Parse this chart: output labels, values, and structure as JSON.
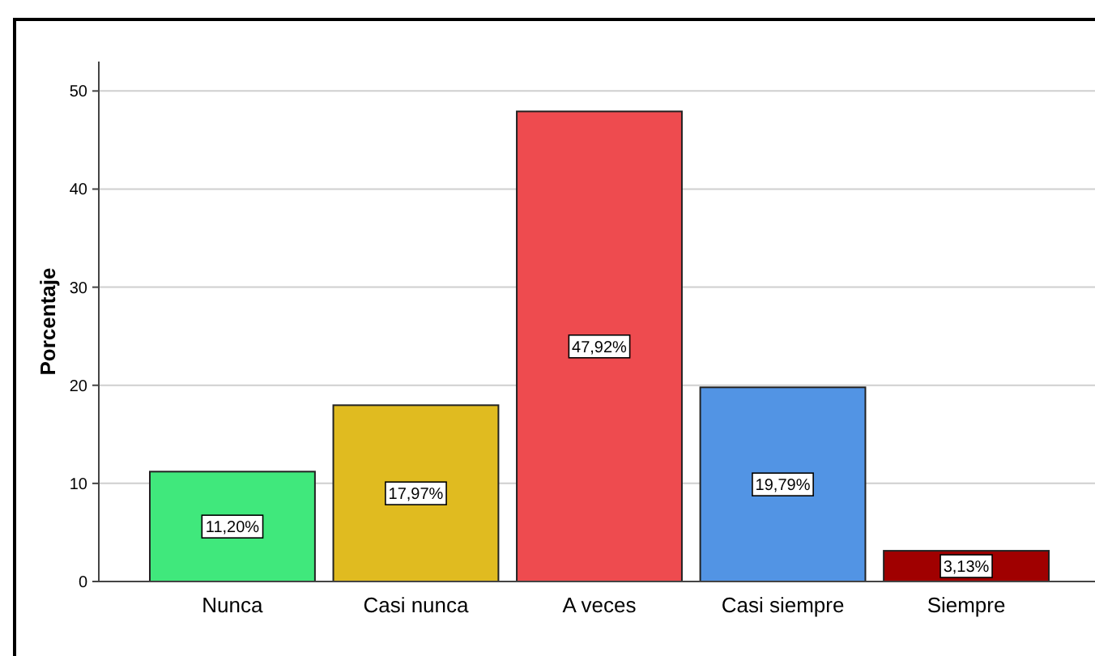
{
  "chart_data": {
    "type": "bar",
    "ylabel": "Porcentaje",
    "categories": [
      "Nunca",
      "Casi nunca",
      "A veces",
      "Casi siempre",
      "Siempre"
    ],
    "values": [
      11.2,
      17.97,
      47.92,
      19.79,
      3.13
    ],
    "colors": [
      "#40e87c",
      "#e0bb20",
      "#ee4b4f",
      "#5294e4",
      "#a00000"
    ],
    "value_labels": [
      "11,20%",
      "17,97%",
      "47,92%",
      "19,79%",
      "3,13%"
    ],
    "ylim": [
      0,
      53
    ],
    "yticks": [
      0,
      10,
      20,
      30,
      40,
      50
    ],
    "grid": "y"
  }
}
